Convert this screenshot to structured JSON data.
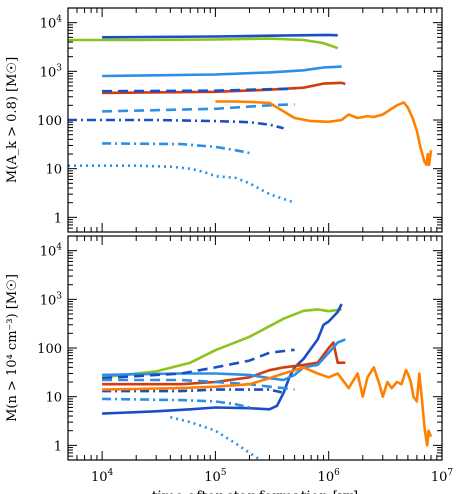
{
  "chart_data": [
    {
      "type": "line",
      "ylabel": "M(A_k > 0.8) [M☉]",
      "xlabel": "",
      "xscale": "log",
      "yscale": "log",
      "xlim": [
        5000,
        10000000
      ],
      "ylim": [
        0.5,
        20000
      ],
      "yticks": [
        {
          "v": 1,
          "label": "1"
        },
        {
          "v": 10,
          "label": "10"
        },
        {
          "v": 100,
          "label": "100"
        },
        {
          "v": 1000,
          "label": "10",
          "exp": "3"
        },
        {
          "v": 10000,
          "label": "10",
          "exp": "4"
        }
      ],
      "series": [
        {
          "color": "#1a4fc4",
          "dash": "solid",
          "points": [
            [
              10000,
              5000
            ],
            [
              100000,
              5200
            ],
            [
              300000,
              5400
            ],
            [
              1000000,
              5600
            ],
            [
              1200000,
              5500
            ]
          ]
        },
        {
          "color": "#8cc31e",
          "dash": "solid",
          "points": [
            [
              5000,
              4400
            ],
            [
              20000,
              4400
            ],
            [
              100000,
              4500
            ],
            [
              300000,
              4700
            ],
            [
              600000,
              4400
            ],
            [
              900000,
              3800
            ],
            [
              1200000,
              3000
            ]
          ]
        },
        {
          "color": "#2b8fe6",
          "dash": "solid",
          "points": [
            [
              10000,
              800
            ],
            [
              100000,
              860
            ],
            [
              300000,
              950
            ],
            [
              600000,
              1050
            ],
            [
              900000,
              1200
            ],
            [
              1300000,
              1250
            ]
          ]
        },
        {
          "color": "#d13c10",
          "dash": "solid",
          "points": [
            [
              10000,
              360
            ],
            [
              100000,
              380
            ],
            [
              300000,
              420
            ],
            [
              600000,
              460
            ],
            [
              900000,
              560
            ],
            [
              1300000,
              580
            ],
            [
              1400000,
              550
            ]
          ]
        },
        {
          "color": "#1a4fc4",
          "dash": "dash",
          "points": [
            [
              10000,
              390
            ],
            [
              100000,
              400
            ],
            [
              300000,
              430
            ],
            [
              500000,
              440
            ]
          ]
        },
        {
          "color": "#2b8fe6",
          "dash": "dash",
          "points": [
            [
              10000,
              150
            ],
            [
              100000,
              170
            ],
            [
              300000,
              200
            ],
            [
              500000,
              210
            ]
          ]
        },
        {
          "color": "#1a4fc4",
          "dash": "dashdot",
          "points": [
            [
              5000,
              100
            ],
            [
              30000,
              100
            ],
            [
              100000,
              95
            ],
            [
              200000,
              90
            ],
            [
              300000,
              80
            ],
            [
              400000,
              68
            ]
          ]
        },
        {
          "color": "#2b8fe6",
          "dash": "dashdot",
          "points": [
            [
              10000,
              33
            ],
            [
              50000,
              32
            ],
            [
              100000,
              28
            ],
            [
              150000,
              24
            ],
            [
              200000,
              21
            ]
          ]
        },
        {
          "color": "#2b8fe6",
          "dash": "dot",
          "points": [
            [
              5000,
              11.5
            ],
            [
              20000,
              11.5
            ],
            [
              40000,
              11
            ],
            [
              60000,
              10
            ],
            [
              80000,
              8.5
            ],
            [
              100000,
              7
            ],
            [
              150000,
              6.5
            ],
            [
              200000,
              5
            ],
            [
              300000,
              3
            ],
            [
              500000,
              2
            ]
          ]
        },
        {
          "color": "#ff8000",
          "dash": "solid",
          "points": [
            [
              100000,
              240
            ],
            [
              150000,
              240
            ],
            [
              200000,
              235
            ],
            [
              300000,
              225
            ],
            [
              400000,
              150
            ],
            [
              500000,
              110
            ],
            [
              700000,
              95
            ],
            [
              1000000,
              92
            ],
            [
              1300000,
              100
            ],
            [
              1500000,
              130
            ],
            [
              1800000,
              110
            ],
            [
              2200000,
              120
            ],
            [
              2500000,
              115
            ],
            [
              3000000,
              130
            ],
            [
              4000000,
              200
            ],
            [
              4600000,
              230
            ],
            [
              5000000,
              180
            ],
            [
              5500000,
              110
            ],
            [
              6000000,
              60
            ],
            [
              6400000,
              30
            ],
            [
              6700000,
              20
            ],
            [
              7000000,
              14
            ],
            [
              7300000,
              12
            ],
            [
              7500000,
              20
            ],
            [
              7700000,
              12
            ],
            [
              8000000,
              24
            ]
          ]
        }
      ]
    },
    {
      "type": "line",
      "ylabel": "M(n > 10⁴ cm⁻³) [M☉]",
      "xlabel": "time after star formation [yr]",
      "xscale": "log",
      "yscale": "log",
      "xlim": [
        5000,
        10000000
      ],
      "ylim": [
        0.5,
        20000
      ],
      "xticks": [
        {
          "v": 10000,
          "label": "10",
          "exp": "4"
        },
        {
          "v": 100000,
          "label": "10",
          "exp": "5"
        },
        {
          "v": 1000000,
          "label": "10",
          "exp": "6"
        },
        {
          "v": 10000000,
          "label": "10",
          "exp": "7"
        }
      ],
      "yticks": [
        {
          "v": 1,
          "label": "1"
        },
        {
          "v": 10,
          "label": "10"
        },
        {
          "v": 100,
          "label": "100"
        },
        {
          "v": 1000,
          "label": "10",
          "exp": "3"
        },
        {
          "v": 10000,
          "label": "10",
          "exp": "4"
        }
      ],
      "series": [
        {
          "color": "#8cc31e",
          "dash": "solid",
          "points": [
            [
              10000,
              25
            ],
            [
              30000,
              33
            ],
            [
              60000,
              50
            ],
            [
              100000,
              90
            ],
            [
              200000,
              170
            ],
            [
              300000,
              280
            ],
            [
              400000,
              400
            ],
            [
              600000,
              580
            ],
            [
              800000,
              620
            ],
            [
              1000000,
              570
            ],
            [
              1300000,
              620
            ]
          ]
        },
        {
          "color": "#1a4fc4",
          "dash": "solid",
          "points": [
            [
              10000,
              4.5
            ],
            [
              30000,
              5
            ],
            [
              60000,
              5.5
            ],
            [
              100000,
              6
            ],
            [
              200000,
              5.8
            ],
            [
              300000,
              5.5
            ],
            [
              350000,
              6.5
            ],
            [
              400000,
              12
            ],
            [
              450000,
              25
            ],
            [
              500000,
              40
            ],
            [
              600000,
              60
            ],
            [
              800000,
              150
            ],
            [
              900000,
              300
            ],
            [
              1000000,
              350
            ],
            [
              1200000,
              550
            ],
            [
              1300000,
              800
            ]
          ]
        },
        {
          "color": "#d13c10",
          "dash": "solid",
          "points": [
            [
              10000,
              18
            ],
            [
              50000,
              18
            ],
            [
              100000,
              20
            ],
            [
              200000,
              25
            ],
            [
              300000,
              35
            ],
            [
              400000,
              40
            ],
            [
              600000,
              45
            ],
            [
              800000,
              50
            ],
            [
              1000000,
              100
            ],
            [
              1100000,
              130
            ],
            [
              1200000,
              50
            ],
            [
              1400000,
              50
            ]
          ]
        },
        {
          "color": "#2b8fe6",
          "dash": "solid",
          "points": [
            [
              10000,
              28
            ],
            [
              50000,
              30
            ],
            [
              100000,
              30
            ],
            [
              200000,
              28
            ],
            [
              300000,
              24
            ],
            [
              400000,
              22
            ],
            [
              500000,
              28
            ],
            [
              600000,
              40
            ],
            [
              800000,
              45
            ],
            [
              1000000,
              80
            ],
            [
              1200000,
              130
            ],
            [
              1400000,
              150
            ]
          ]
        },
        {
          "color": "#1a4fc4",
          "dash": "dash",
          "points": [
            [
              10000,
              24
            ],
            [
              50000,
              30
            ],
            [
              100000,
              40
            ],
            [
              200000,
              55
            ],
            [
              300000,
              80
            ],
            [
              500000,
              92
            ]
          ]
        },
        {
          "color": "#2b8fe6",
          "dash": "dash",
          "points": [
            [
              10000,
              22
            ],
            [
              50000,
              22
            ],
            [
              100000,
              20
            ],
            [
              200000,
              18
            ],
            [
              300000,
              16
            ],
            [
              400000,
              15
            ],
            [
              500000,
              14
            ]
          ]
        },
        {
          "color": "#1a4fc4",
          "dash": "dashdot",
          "points": [
            [
              10000,
              13
            ],
            [
              50000,
              13
            ],
            [
              100000,
              14
            ],
            [
              200000,
              14
            ],
            [
              300000,
              14
            ],
            [
              400000,
              12
            ]
          ]
        },
        {
          "color": "#2b8fe6",
          "dash": "dashdot",
          "points": [
            [
              10000,
              9
            ],
            [
              50000,
              8.5
            ],
            [
              100000,
              8
            ],
            [
              150000,
              7
            ],
            [
              200000,
              6
            ]
          ]
        },
        {
          "color": "#2b8fe6",
          "dash": "dot",
          "points": [
            [
              40000,
              3.8
            ],
            [
              60000,
              3
            ],
            [
              100000,
              2
            ],
            [
              150000,
              1.1
            ],
            [
              200000,
              0.7
            ],
            [
              250000,
              0.5
            ]
          ]
        },
        {
          "color": "#ff8000",
          "dash": "solid",
          "points": [
            [
              10000,
              14
            ],
            [
              50000,
              15
            ],
            [
              100000,
              16
            ],
            [
              200000,
              18
            ],
            [
              300000,
              24
            ],
            [
              400000,
              30
            ],
            [
              500000,
              35
            ],
            [
              600000,
              40
            ],
            [
              800000,
              30
            ],
            [
              1000000,
              25
            ],
            [
              1200000,
              30
            ],
            [
              1500000,
              15
            ],
            [
              1800000,
              30
            ],
            [
              2000000,
              10
            ],
            [
              2200000,
              25
            ],
            [
              2500000,
              40
            ],
            [
              2800000,
              18
            ],
            [
              3000000,
              10
            ],
            [
              3300000,
              20
            ],
            [
              3600000,
              15
            ],
            [
              4000000,
              20
            ],
            [
              4400000,
              18
            ],
            [
              4800000,
              35
            ],
            [
              5000000,
              30
            ],
            [
              5300000,
              20
            ],
            [
              5600000,
              10
            ],
            [
              6000000,
              8
            ],
            [
              6300000,
              30
            ],
            [
              6500000,
              15
            ],
            [
              6800000,
              5
            ],
            [
              7000000,
              2.5
            ],
            [
              7200000,
              1.5
            ],
            [
              7400000,
              1
            ],
            [
              7600000,
              2
            ],
            [
              8000000,
              1.5
            ]
          ]
        }
      ]
    }
  ]
}
